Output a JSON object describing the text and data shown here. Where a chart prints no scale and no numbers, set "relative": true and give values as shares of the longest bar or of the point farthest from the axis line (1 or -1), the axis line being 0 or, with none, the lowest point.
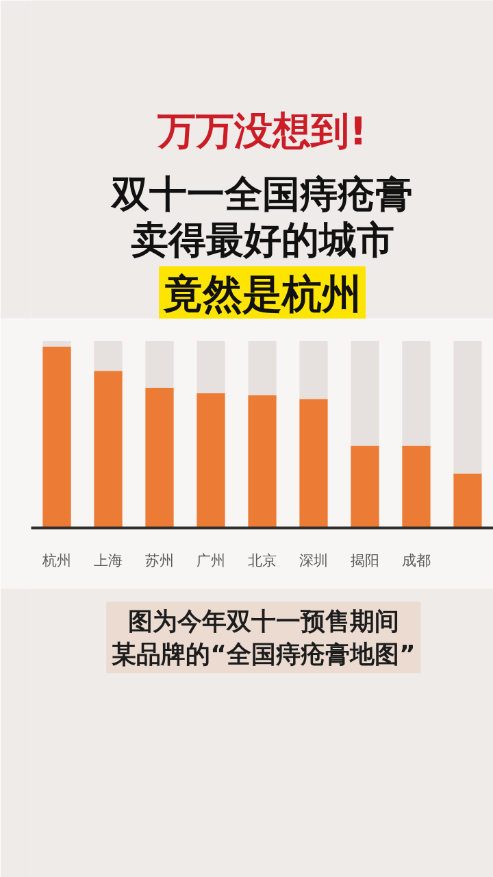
{
  "chart_data": {
    "type": "bar",
    "title": "万万没想到!",
    "subtitle": "双十一全国痔疮膏卖得最好的城市",
    "annotations": [
      "竟然是杭州",
      "图为今年双十一预售期间某品牌的“全国痔疮膏地图”"
    ],
    "categories": [
      "杭州",
      "上海",
      "苏州",
      "广州",
      "北京",
      "深圳",
      "揭阳",
      "成都",
      null
    ],
    "stacked": true,
    "relative": true,
    "series": [
      {
        "color": "#ec7b35",
        "values": [
          0.97,
          0.84,
          0.75,
          0.72,
          0.71,
          0.69,
          0.44,
          0.44,
          0.29
        ]
      },
      {
        "color": "#e6e1de",
        "values": [
          0.03,
          0.16,
          0.25,
          0.28,
          0.29,
          0.31,
          0.56,
          0.56,
          0.71
        ]
      }
    ]
  }
}
